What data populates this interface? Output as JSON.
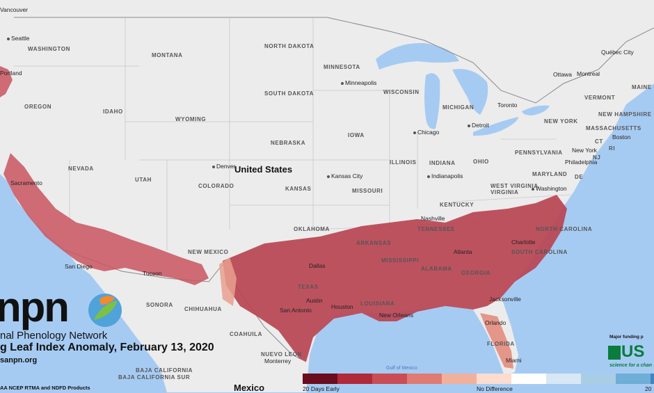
{
  "map": {
    "country_labels": [
      {
        "key": "us",
        "text": "United States"
      },
      {
        "key": "mx",
        "text": "Mexico"
      }
    ],
    "region_labels": [
      "WASHINGTON",
      "MONTANA",
      "NORTH DAKOTA",
      "MINNESOTA",
      "OREGON",
      "IDAHO",
      "WYOMING",
      "SOUTH DAKOTA",
      "WISCONSIN",
      "MICHIGAN",
      "NEVADA",
      "UTAH",
      "COLORADO",
      "NEBRASKA",
      "IOWA",
      "ILLINOIS",
      "INDIANA",
      "OHIO",
      "PENNSYLVANIA",
      "NEW YORK",
      "KANSAS",
      "MISSOURI",
      "KENTUCKY",
      "WEST VIRGINIA",
      "VIRGINIA",
      "MARYLAND",
      "OKLAHOMA",
      "TENNESSEE",
      "ARKANSAS",
      "NORTH CAROLINA",
      "SOUTH CAROLINA",
      "NEW MEXICO",
      "MISSISSIPPI",
      "ALABAMA",
      "GEORGIA",
      "TEXAS",
      "LOUISIANA",
      "FLORIDA",
      "CHIHUAHUA",
      "COAHUILA",
      "NUEVO LEON",
      "SONORA",
      "BAJA CALIFORNIA",
      "BAJA CALIFORNIA SUR",
      "VERMONT",
      "NEW HAMPSHIRE",
      "MASSACHUSETTS",
      "MAINE",
      "CT",
      "RI",
      "NJ",
      "DE"
    ],
    "cities": [
      "Seattle",
      "Portland",
      "Minneapolis",
      "Chicago",
      "Detroit",
      "Toronto",
      "Ottawa",
      "Montreal",
      "Québec City",
      "Boston",
      "New York",
      "Philadelphia",
      "Washington",
      "Denver",
      "Kansas City",
      "Indianapolis",
      "Nashville",
      "Atlanta",
      "Charlotte",
      "Dallas",
      "Austin",
      "San Antonio",
      "Houston",
      "New Orleans",
      "Jacksonville",
      "Orlando",
      "Miami",
      "Monterrey",
      "San Diego",
      "Tucson",
      "Sacramento",
      "Vancouver"
    ],
    "water_labels": [
      "Gulf of Mexico"
    ],
    "colors": {
      "land": "#ececec",
      "water": "#a6cbf3",
      "anomaly_dark": "#b94452",
      "anomaly_mid": "#c95560",
      "anomaly_light": "#e9a08f"
    }
  },
  "branding": {
    "logo_text": "npn",
    "org_name": "nal Phenology Network",
    "product_title": "g Leaf Index Anomaly, February 13, 2020",
    "website": "sanpn.org",
    "data_source": "AA NCEP RTMA and NDFD Products",
    "funding_label": "Major funding p",
    "funder_logo_text": "US",
    "funder_tagline": "science for a chan"
  },
  "legend": {
    "left_label": "20 Days Early",
    "middle_label": "No Difference",
    "right_label": "20",
    "colors": [
      "#6a0d1f",
      "#b02a3a",
      "#c94d55",
      "#e07b73",
      "#f1b09c",
      "#fbdccf",
      "#ffffff",
      "#d7e7f4",
      "#a9cde5",
      "#6faed6",
      "#3e85c1",
      "#1f5ca0"
    ]
  }
}
